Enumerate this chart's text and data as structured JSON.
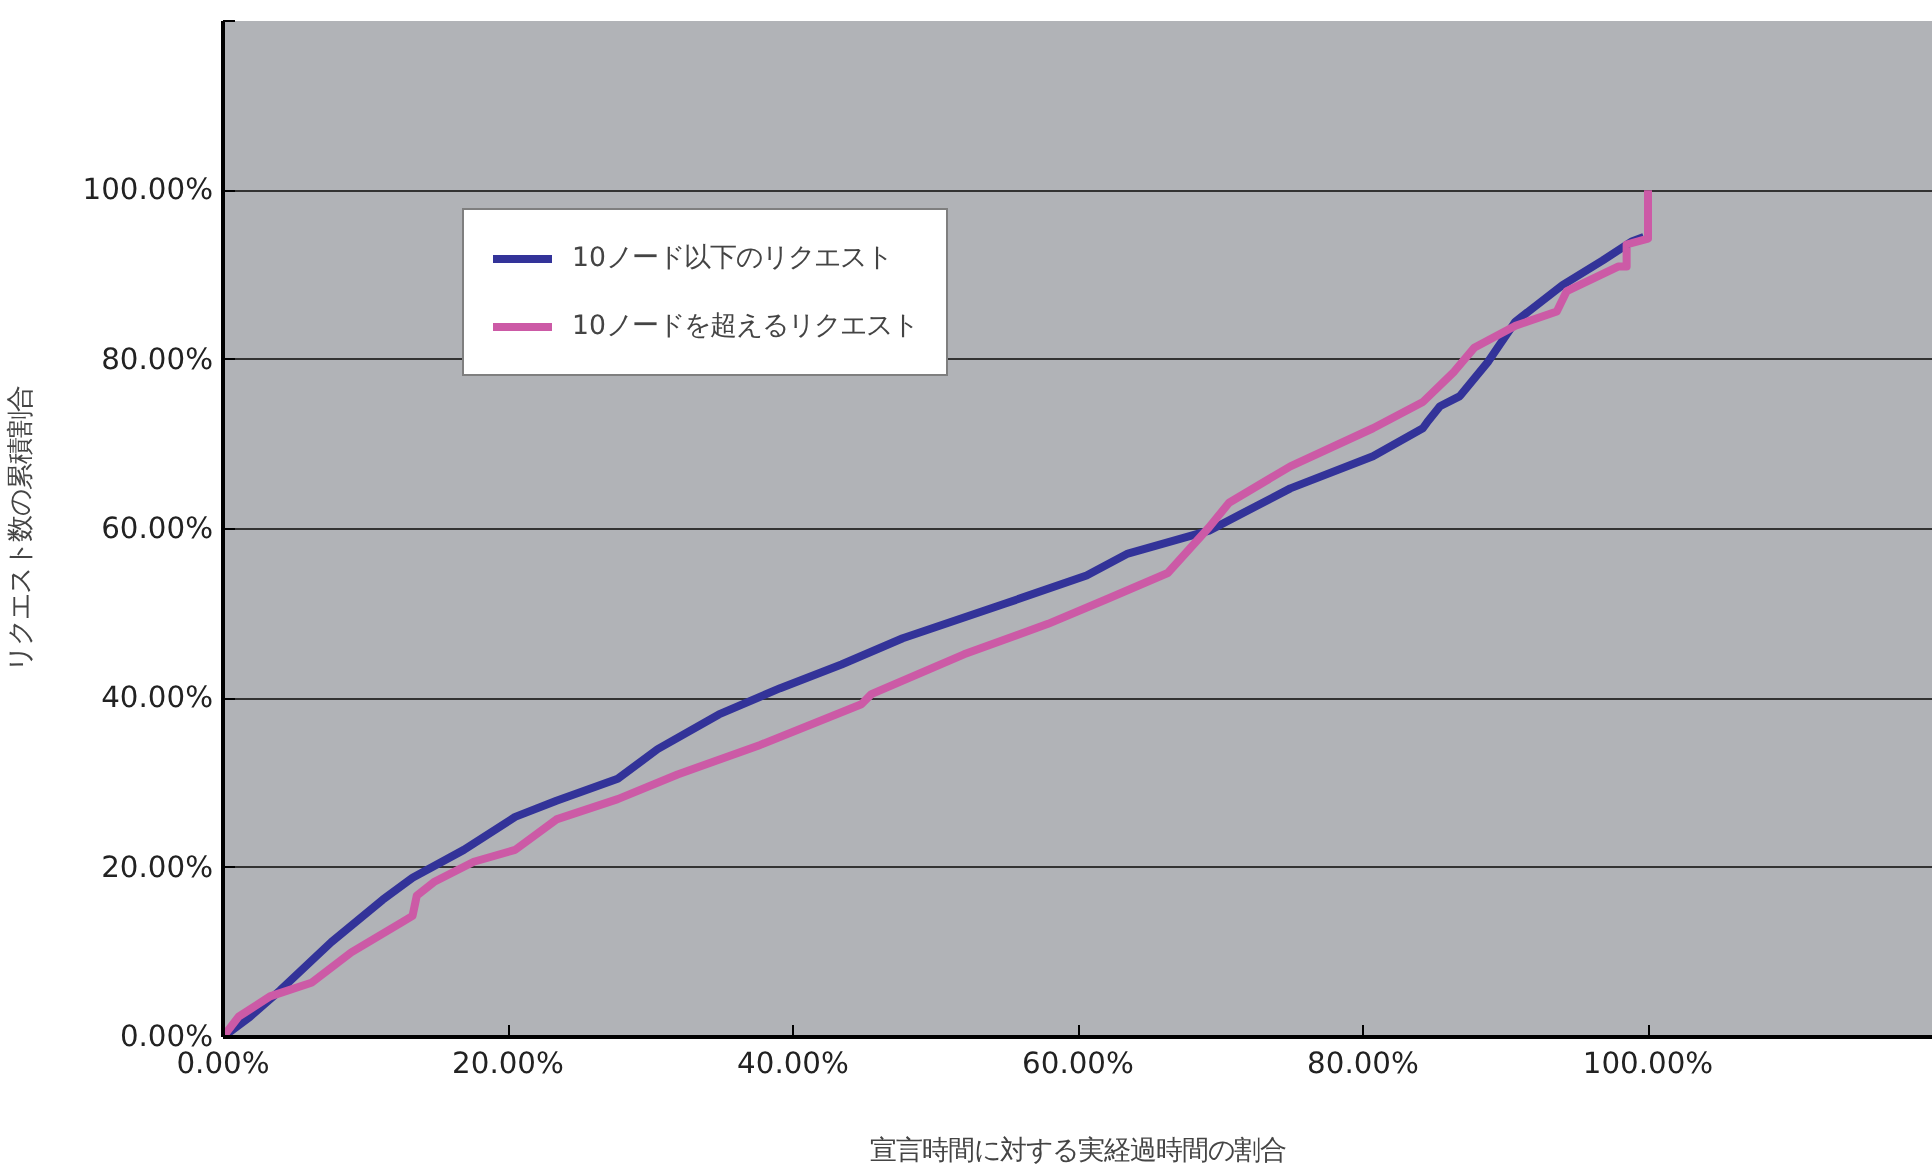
{
  "chart_data": {
    "type": "line",
    "xlabel": "宣言時間に対する実経過時間の割合",
    "ylabel": "リクエスト数の累積割合",
    "xlim": [
      0,
      120
    ],
    "ylim": [
      0,
      120
    ],
    "xticks": [
      {
        "value": 0,
        "label": "0.00%"
      },
      {
        "value": 20,
        "label": "20.00%"
      },
      {
        "value": 40,
        "label": "40.00%"
      },
      {
        "value": 60,
        "label": "60.00%"
      },
      {
        "value": 80,
        "label": "80.00%"
      },
      {
        "value": 100,
        "label": "100.00%"
      }
    ],
    "yticks": [
      {
        "value": 0,
        "label": "0.00%"
      },
      {
        "value": 20,
        "label": "20.00%"
      },
      {
        "value": 40,
        "label": "40.00%"
      },
      {
        "value": 60,
        "label": "60.00%"
      },
      {
        "value": 80,
        "label": "80.00%"
      },
      {
        "value": 100,
        "label": "100.00%"
      },
      {
        "value": 120,
        "label": null
      }
    ],
    "grid": "y",
    "legend": "top left",
    "line_style": "solid",
    "series": [
      {
        "name": "10ノード以下のリクエスト",
        "color": "#333399",
        "x": [
          0,
          1.9,
          4,
          7.6,
          11.2,
          13.3,
          16.9,
          20.5,
          23.4,
          27.7,
          30.5,
          34.8,
          39.1,
          43.4,
          47.7,
          54.9,
          60.6,
          63.5,
          69.2,
          74.9,
          80.7,
          84.2,
          84.5,
          85.4,
          86.8,
          88.8,
          90.7,
          94,
          96.8,
          98.9,
          99.7
        ],
        "values": [
          0,
          2.4,
          5.5,
          11.2,
          16.2,
          18.8,
          22.1,
          26,
          27.9,
          30.5,
          34,
          38.1,
          41.2,
          44,
          47.1,
          51.2,
          54.5,
          57.1,
          59.8,
          64.8,
          68.6,
          71.9,
          72.6,
          74.5,
          75.7,
          79.8,
          84.5,
          88.8,
          91.7,
          94,
          94.5
        ]
      },
      {
        "name": "10ノードを超えるリクエスト",
        "color": "#cc5aa6",
        "x": [
          0,
          1.1,
          3.3,
          6.2,
          9,
          12.6,
          13.3,
          13.6,
          14.8,
          17.6,
          20.5,
          23.4,
          27.7,
          31.9,
          37.7,
          44.8,
          45.5,
          52,
          57.9,
          62,
          66.3,
          69.2,
          70.6,
          74.9,
          80.7,
          84.2,
          86.4,
          87.8,
          90.7,
          93.6,
          94.3,
          97.9,
          98.5,
          98.5,
          100,
          100
        ],
        "values": [
          0,
          2.4,
          4.8,
          6.4,
          10,
          13.6,
          14.3,
          16.7,
          18.3,
          20.7,
          22.1,
          25.7,
          28.1,
          31,
          34.5,
          39.3,
          40.5,
          45.2,
          48.8,
          51.7,
          54.8,
          60.2,
          63.1,
          67.4,
          71.9,
          75,
          78.6,
          81.4,
          84,
          85.7,
          88.1,
          91,
          91,
          93.6,
          94.3,
          100
        ]
      }
    ]
  }
}
